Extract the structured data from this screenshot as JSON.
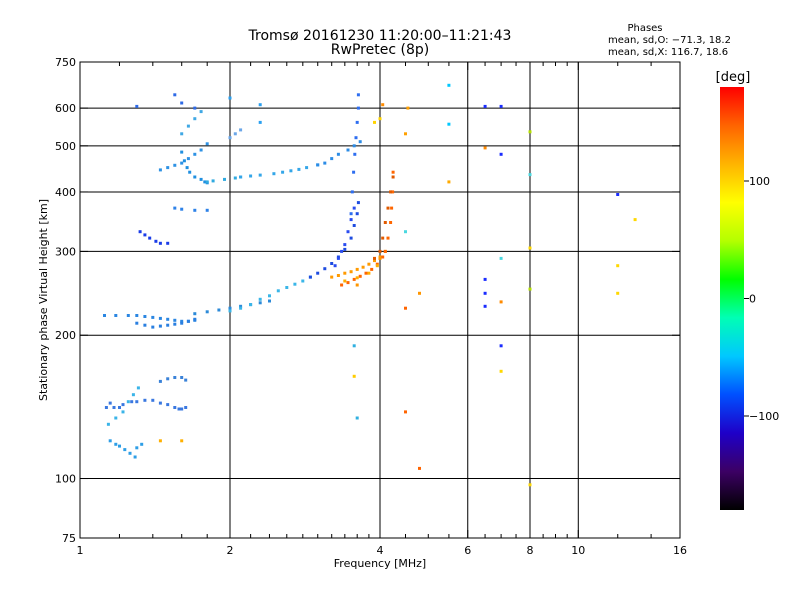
{
  "chart_data": {
    "type": "scatter",
    "title": "Tromsø 20161230 11:20:00–11:21:43",
    "subtitle": "RwPretec (8p)",
    "stats": {
      "heading": "Phases",
      "line1": "mean, sd,O: −71.3, 18.2",
      "line2": "mean, sd,X: 116.7, 18.6"
    },
    "xlabel": "Frequency [MHz]",
    "ylabel": "Stationary phase Virtual Height [km]",
    "x_scale": "log",
    "y_scale": "log",
    "xlim": [
      1,
      16
    ],
    "ylim": [
      75,
      750
    ],
    "x_ticks": [
      {
        "value": 1,
        "label": "1"
      },
      {
        "value": 2,
        "label": "2"
      },
      {
        "value": 4,
        "label": "4"
      },
      {
        "value": 6,
        "label": "6"
      },
      {
        "value": 8,
        "label": "8"
      },
      {
        "value": 10,
        "label": "10"
      },
      {
        "value": 16,
        "label": "16"
      }
    ],
    "x_gridlines": [
      2,
      4,
      6,
      8,
      10
    ],
    "x_minor_ticks": [
      1.2,
      1.4,
      1.6,
      1.8,
      2.2,
      2.4,
      2.6,
      2.8,
      3,
      3.2,
      3.4,
      3.6,
      3.8,
      4.5,
      5,
      5.5,
      6.5,
      7,
      7.5,
      8.5,
      9,
      9.5,
      12,
      14
    ],
    "y_ticks": [
      {
        "value": 75,
        "label": "75"
      },
      {
        "value": 100,
        "label": "100"
      },
      {
        "value": 200,
        "label": "200"
      },
      {
        "value": 300,
        "label": "300"
      },
      {
        "value": 400,
        "label": "400"
      },
      {
        "value": 500,
        "label": "500"
      },
      {
        "value": 600,
        "label": "600"
      },
      {
        "value": 750,
        "label": "750"
      }
    ],
    "y_gridlines": [
      100,
      200,
      300,
      400,
      500,
      600
    ],
    "grid": true,
    "colorbar": {
      "label": "[deg]",
      "range": [
        -180,
        180
      ],
      "ticks": [
        {
          "value": 100,
          "label": "100"
        },
        {
          "value": 0,
          "label": "0"
        },
        {
          "value": -100,
          "label": "−100"
        }
      ],
      "colors": [
        "#000000",
        "#3c0064",
        "#1e00c8",
        "#0050ff",
        "#00c8ff",
        "#00ffb4",
        "#00ff00",
        "#b4ff00",
        "#ffff00",
        "#ffb400",
        "#ff6400",
        "#ff0000"
      ]
    },
    "series": [
      {
        "color": "#3a78e0",
        "points": [
          [
            1.13,
            141
          ],
          [
            1.15,
            144
          ],
          [
            1.17,
            141
          ],
          [
            1.2,
            141
          ],
          [
            1.22,
            143
          ],
          [
            1.27,
            145
          ],
          [
            1.3,
            145
          ],
          [
            1.35,
            146
          ],
          [
            1.4,
            146
          ],
          [
            1.45,
            144
          ],
          [
            1.5,
            143
          ],
          [
            1.55,
            141
          ],
          [
            1.58,
            140
          ],
          [
            1.6,
            140
          ],
          [
            1.63,
            141
          ]
        ]
      },
      {
        "color": "#2e9ee6",
        "points": [
          [
            1.15,
            120
          ],
          [
            1.18,
            118
          ],
          [
            1.2,
            117
          ],
          [
            1.23,
            115
          ],
          [
            1.26,
            113
          ],
          [
            1.29,
            111
          ],
          [
            1.3,
            116
          ],
          [
            1.33,
            118
          ]
        ]
      },
      {
        "color": "#3ab4e8",
        "points": [
          [
            1.14,
            130
          ],
          [
            1.18,
            134
          ],
          [
            1.22,
            138
          ],
          [
            1.25,
            145
          ],
          [
            1.28,
            150
          ],
          [
            1.31,
            155
          ]
        ]
      },
      {
        "color": "#3a82d8",
        "points": [
          [
            1.45,
            160
          ],
          [
            1.5,
            162
          ],
          [
            1.55,
            163
          ],
          [
            1.6,
            163
          ],
          [
            1.63,
            161
          ]
        ]
      },
      {
        "color": "#1f8fe0",
        "points": [
          [
            1.6,
            485
          ],
          [
            1.62,
            465
          ],
          [
            1.64,
            450
          ],
          [
            1.66,
            440
          ],
          [
            1.7,
            430
          ],
          [
            1.75,
            425
          ],
          [
            1.78,
            420
          ],
          [
            1.8,
            418
          ]
        ]
      },
      {
        "color": "#30aae0",
        "points": [
          [
            1.8,
            420
          ],
          [
            1.85,
            422
          ],
          [
            1.95,
            425
          ],
          [
            2.05,
            428
          ],
          [
            2.1,
            430
          ]
        ]
      },
      {
        "color": "#2e92e4",
        "points": [
          [
            1.45,
            445
          ],
          [
            1.5,
            450
          ],
          [
            1.55,
            455
          ],
          [
            1.6,
            460
          ],
          [
            1.65,
            470
          ],
          [
            1.7,
            480
          ],
          [
            1.75,
            490
          ],
          [
            1.8,
            505
          ]
        ]
      },
      {
        "color": "#40a8e4",
        "points": [
          [
            1.6,
            530
          ],
          [
            1.65,
            550
          ],
          [
            1.7,
            570
          ],
          [
            1.75,
            590
          ]
        ]
      },
      {
        "color": "#6aa6e8",
        "points": [
          [
            2.0,
            520
          ],
          [
            2.05,
            530
          ],
          [
            2.1,
            540
          ]
        ]
      },
      {
        "color": "#34a6e8",
        "points": [
          [
            2.1,
            430
          ],
          [
            2.2,
            432
          ],
          [
            2.3,
            434
          ],
          [
            2.45,
            437
          ],
          [
            2.55,
            440
          ],
          [
            2.65,
            443
          ],
          [
            2.75,
            446
          ],
          [
            2.85,
            450
          ],
          [
            3.0,
            456
          ]
        ]
      },
      {
        "color": "#2c8ce6",
        "points": [
          [
            3.0,
            456
          ],
          [
            3.1,
            460
          ],
          [
            3.2,
            470
          ],
          [
            3.3,
            480
          ],
          [
            3.45,
            490
          ],
          [
            3.55,
            500
          ],
          [
            3.65,
            510
          ]
        ]
      },
      {
        "color": "#2a86e2",
        "points": [
          [
            1.12,
            220
          ],
          [
            1.18,
            220
          ],
          [
            1.25,
            220
          ],
          [
            1.3,
            220
          ],
          [
            1.35,
            219
          ],
          [
            1.4,
            218
          ],
          [
            1.45,
            217
          ],
          [
            1.5,
            216
          ],
          [
            1.55,
            215
          ],
          [
            1.6,
            214
          ],
          [
            1.65,
            214
          ],
          [
            1.7,
            215
          ]
        ]
      },
      {
        "color": "#2a7fe0",
        "points": [
          [
            1.3,
            212
          ],
          [
            1.35,
            210
          ],
          [
            1.4,
            208
          ],
          [
            1.45,
            209
          ],
          [
            1.5,
            210
          ],
          [
            1.55,
            211
          ],
          [
            1.6,
            212
          ],
          [
            1.65,
            214
          ],
          [
            1.7,
            216
          ]
        ]
      },
      {
        "color": "#2c8ad8",
        "points": [
          [
            1.7,
            222
          ],
          [
            1.8,
            224
          ],
          [
            1.9,
            226
          ],
          [
            2.0,
            228
          ],
          [
            2.1,
            230
          ],
          [
            2.2,
            232
          ],
          [
            2.3,
            234
          ],
          [
            2.4,
            236
          ]
        ]
      },
      {
        "color": "#3ab6e8",
        "points": [
          [
            2.0,
            225
          ],
          [
            2.1,
            228
          ],
          [
            2.2,
            232
          ],
          [
            2.3,
            238
          ],
          [
            2.4,
            242
          ],
          [
            2.5,
            248
          ],
          [
            2.6,
            252
          ],
          [
            2.7,
            256
          ],
          [
            2.8,
            260
          ],
          [
            2.9,
            265
          ]
        ]
      },
      {
        "color": "#1e4ce0",
        "points": [
          [
            2.9,
            265
          ],
          [
            3.0,
            270
          ],
          [
            3.1,
            276
          ],
          [
            3.2,
            283
          ],
          [
            3.3,
            292
          ],
          [
            3.4,
            303
          ],
          [
            3.5,
            320
          ],
          [
            3.55,
            340
          ],
          [
            3.6,
            360
          ],
          [
            3.62,
            380
          ]
        ]
      },
      {
        "color": "#2a4cf0",
        "points": [
          [
            3.25,
            280
          ],
          [
            3.3,
            290
          ],
          [
            3.35,
            300
          ],
          [
            3.4,
            310
          ],
          [
            3.45,
            330
          ],
          [
            3.5,
            350
          ],
          [
            3.55,
            370
          ]
        ]
      },
      {
        "color": "#2e6ef0",
        "points": [
          [
            3.5,
            360
          ],
          [
            3.52,
            400
          ],
          [
            3.54,
            440
          ],
          [
            3.56,
            480
          ],
          [
            3.58,
            520
          ],
          [
            3.6,
            560
          ],
          [
            3.62,
            600
          ],
          [
            3.62,
            640
          ]
        ]
      },
      {
        "color": "#ff9a00",
        "points": [
          [
            3.2,
            265
          ],
          [
            3.3,
            267
          ],
          [
            3.4,
            270
          ],
          [
            3.5,
            272
          ],
          [
            3.6,
            275
          ],
          [
            3.7,
            278
          ],
          [
            3.8,
            282
          ],
          [
            3.9,
            287
          ],
          [
            4.0,
            292
          ],
          [
            4.1,
            300
          ]
        ]
      },
      {
        "color": "#ff6600",
        "points": [
          [
            3.35,
            255
          ],
          [
            3.45,
            258
          ],
          [
            3.55,
            262
          ],
          [
            3.65,
            266
          ],
          [
            3.75,
            270
          ],
          [
            3.85,
            275
          ],
          [
            3.95,
            282
          ],
          [
            4.05,
            292
          ],
          [
            4.1,
            300
          ],
          [
            4.15,
            320
          ],
          [
            4.2,
            345
          ],
          [
            4.22,
            370
          ],
          [
            4.24,
            400
          ],
          [
            4.25,
            440
          ]
        ]
      },
      {
        "color": "#e05a00",
        "points": [
          [
            3.9,
            290
          ],
          [
            4.0,
            300
          ],
          [
            4.05,
            320
          ],
          [
            4.1,
            345
          ],
          [
            4.15,
            370
          ],
          [
            4.2,
            400
          ],
          [
            4.25,
            430
          ]
        ]
      },
      {
        "color": "#ffae00",
        "points": [
          [
            3.4,
            260
          ],
          [
            3.6,
            264
          ],
          [
            3.8,
            270
          ],
          [
            3.95,
            280
          ]
        ]
      },
      {
        "color": "#1a3ce8",
        "points": [
          [
            1.32,
            330
          ],
          [
            1.35,
            325
          ],
          [
            1.38,
            320
          ],
          [
            1.42,
            315
          ],
          [
            1.45,
            312
          ],
          [
            1.5,
            312
          ]
        ]
      },
      {
        "color": "#2e82e8",
        "points": [
          [
            1.55,
            370
          ],
          [
            1.6,
            368
          ],
          [
            1.7,
            366
          ],
          [
            1.8,
            366
          ]
        ]
      },
      {
        "color": "#2e6ae6",
        "points": [
          [
            1.3,
            605
          ],
          [
            1.55,
            640
          ],
          [
            1.6,
            615
          ],
          [
            1.7,
            600
          ]
        ]
      },
      {
        "color": "#ff8c00",
        "points": [
          [
            4.05,
            610
          ]
        ]
      },
      {
        "color": "#ffd400",
        "points": [
          [
            3.9,
            560
          ],
          [
            4.0,
            570
          ]
        ]
      },
      {
        "color": "#ffa000",
        "points": [
          [
            4.5,
            530
          ],
          [
            4.55,
            600
          ]
        ]
      },
      {
        "color": "#00c8ff",
        "points": [
          [
            5.5,
            670
          ],
          [
            5.5,
            555
          ]
        ]
      },
      {
        "color": "#ffaa00",
        "points": [
          [
            5.5,
            420
          ]
        ]
      },
      {
        "color": "#1a2cff",
        "points": [
          [
            6.5,
            605
          ],
          [
            7.0,
            605
          ],
          [
            6.5,
            262
          ],
          [
            6.5,
            245
          ],
          [
            6.5,
            230
          ],
          [
            7.0,
            480
          ],
          [
            7.0,
            190
          ],
          [
            12.0,
            395
          ]
        ]
      },
      {
        "color": "#ff8a00",
        "points": [
          [
            6.5,
            495
          ],
          [
            7.0,
            235
          ]
        ]
      },
      {
        "color": "#4ad8e0",
        "points": [
          [
            8.0,
            435
          ],
          [
            7.0,
            290
          ],
          [
            4.5,
            330
          ]
        ]
      },
      {
        "color": "#ffd800",
        "points": [
          [
            8.0,
            305
          ],
          [
            7.0,
            168
          ],
          [
            8.0,
            97
          ],
          [
            13.0,
            350
          ],
          [
            12.0,
            280
          ],
          [
            12.0,
            245
          ]
        ]
      },
      {
        "color": "#b4e000",
        "points": [
          [
            8.0,
            535
          ],
          [
            8.0,
            250
          ]
        ]
      },
      {
        "color": "#ff6400",
        "points": [
          [
            4.5,
            228
          ],
          [
            4.8,
            105
          ],
          [
            4.5,
            138
          ]
        ]
      },
      {
        "color": "#ff9600",
        "points": [
          [
            4.8,
            245
          ],
          [
            3.6,
            255
          ],
          [
            4.0,
            290
          ]
        ]
      },
      {
        "color": "#ffcc00",
        "points": [
          [
            3.55,
            164
          ]
        ]
      },
      {
        "color": "#30b0e0",
        "points": [
          [
            3.55,
            190
          ],
          [
            3.6,
            134
          ]
        ]
      },
      {
        "color": "#2aa0f0",
        "points": [
          [
            2.3,
            560
          ],
          [
            2.3,
            610
          ],
          [
            2.0,
            630
          ]
        ]
      },
      {
        "color": "#ffb000",
        "points": [
          [
            1.45,
            120
          ],
          [
            1.6,
            120
          ]
        ]
      }
    ]
  }
}
